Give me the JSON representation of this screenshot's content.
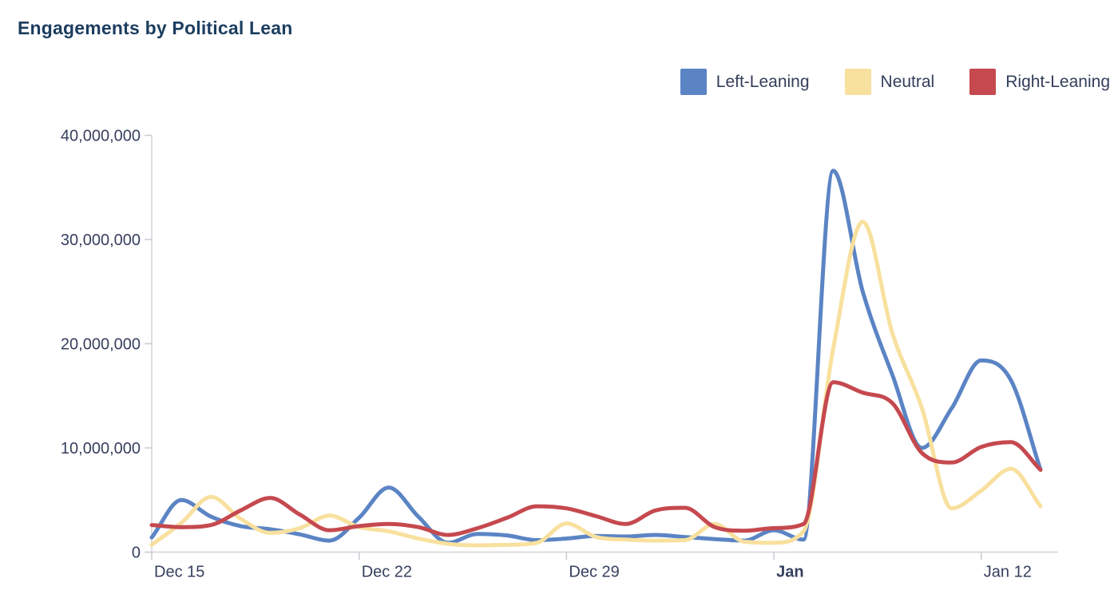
{
  "chart_data": {
    "type": "line",
    "smoothing": "spline",
    "title": "Engagements by Political Lean",
    "grid": "off",
    "legend_position": "top-right",
    "x": [
      "Dec 15",
      "Dec 16",
      "Dec 17",
      "Dec 18",
      "Dec 19",
      "Dec 20",
      "Dec 21",
      "Dec 22",
      "Dec 23",
      "Dec 24",
      "Dec 25",
      "Dec 26",
      "Dec 27",
      "Dec 28",
      "Dec 29",
      "Dec 30",
      "Dec 31",
      "Jan 1",
      "Jan 2",
      "Jan 3",
      "Jan 4",
      "Jan 5",
      "Jan 6",
      "Jan 7",
      "Jan 8",
      "Jan 9",
      "Jan 10",
      "Jan 11",
      "Jan 12",
      "Jan 13",
      "Jan 14"
    ],
    "series": [
      {
        "name": "Left-Leaning",
        "color": "#5b84c4",
        "values": [
          1400000,
          5000000,
          3400000,
          2500000,
          2200000,
          1700000,
          1100000,
          3300000,
          6200000,
          3400000,
          900000,
          1750000,
          1600000,
          1150000,
          1300000,
          1550000,
          1500000,
          1650000,
          1450000,
          1250000,
          1100000,
          2100000,
          1200000,
          36600000,
          25000000,
          17000000,
          10000000,
          13800000,
          18400000,
          16500000,
          7900000
        ]
      },
      {
        "name": "Neutral",
        "color": "#f8e09e",
        "values": [
          700000,
          2800000,
          5300000,
          3200000,
          1850000,
          2300000,
          3500000,
          2400000,
          2000000,
          1300000,
          800000,
          650000,
          700000,
          900000,
          2750000,
          1450000,
          1200000,
          1100000,
          1150000,
          2700000,
          1000000,
          900000,
          2000000,
          19500000,
          31700000,
          21000000,
          13800000,
          4200000,
          5900000,
          8000000,
          4400000
        ]
      },
      {
        "name": "Right-Leaning",
        "color": "#c5494f",
        "values": [
          2600000,
          2400000,
          2600000,
          4000000,
          5200000,
          3600000,
          2100000,
          2500000,
          2700000,
          2400000,
          1650000,
          2300000,
          3300000,
          4400000,
          4200000,
          3450000,
          2700000,
          4000000,
          4250000,
          2400000,
          2050000,
          2300000,
          2700000,
          16300000,
          15300000,
          14300000,
          9500000,
          8600000,
          10100000,
          10550000,
          7900000
        ]
      }
    ],
    "ylim": [
      0,
      40000000
    ],
    "y_ticks": [
      0,
      10000000,
      20000000,
      30000000,
      40000000
    ],
    "x_tick_labels": [
      {
        "label": "Dec 15",
        "index": 0,
        "bold": false
      },
      {
        "label": "Dec 22",
        "index": 7,
        "bold": false
      },
      {
        "label": "Dec 29",
        "index": 14,
        "bold": false
      },
      {
        "label": "Jan",
        "index": 21,
        "bold": true
      },
      {
        "label": "Jan 12",
        "index": 28,
        "bold": false
      }
    ]
  },
  "colors": {
    "title_text": "#1c3d5f",
    "axis_label_text": "#36405e",
    "axis_line": "#d2d3d8",
    "tick_line": "#c9cbd2"
  }
}
